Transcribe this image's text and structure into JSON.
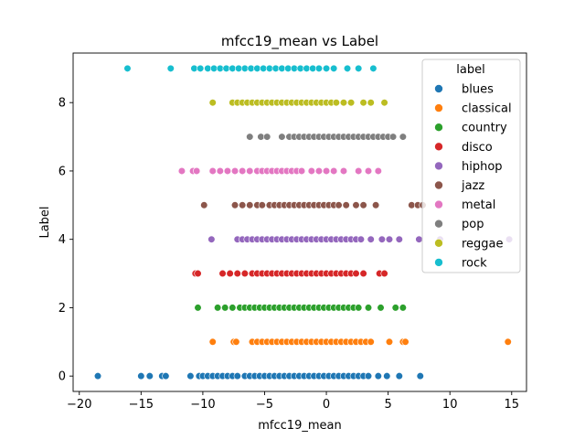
{
  "chart_data": {
    "type": "scatter",
    "title": "mfcc19_mean vs Label",
    "xlabel": "mfcc19_mean",
    "ylabel": "Label",
    "xlim": [
      -20.5,
      16.2
    ],
    "ylim": [
      -0.45,
      9.45
    ],
    "xticks": [
      -20,
      -15,
      -10,
      -5,
      0,
      5,
      10,
      15
    ],
    "yticks": [
      0,
      2,
      4,
      6,
      8
    ],
    "grid": false,
    "legend": {
      "title": "label",
      "placement": "top-right"
    },
    "series": [
      {
        "name": "blues",
        "color": "#1f77b4",
        "label": 0,
        "x": [
          -18.5,
          -15.0,
          -14.3,
          -13.3,
          -13.0,
          -11.0,
          -10.3,
          -10.0,
          -9.6,
          -9.2,
          -8.8,
          -8.4,
          -8.0,
          -7.6,
          -7.2,
          -6.6,
          -6.2,
          -5.8,
          -5.4,
          -5.0,
          -4.6,
          -4.2,
          -3.8,
          -3.4,
          -3.0,
          -2.6,
          -2.2,
          -1.8,
          -1.4,
          -1.0,
          -0.6,
          -0.2,
          0.2,
          0.6,
          1.0,
          1.4,
          1.8,
          2.2,
          2.6,
          3.0,
          3.4,
          4.2,
          4.9,
          5.9,
          7.6
        ]
      },
      {
        "name": "classical",
        "color": "#ff7f0e",
        "label": 1,
        "x": [
          -9.2,
          -7.5,
          -7.3,
          -6.0,
          -5.6,
          -5.2,
          -4.8,
          -4.4,
          -4.0,
          -3.6,
          -3.2,
          -2.8,
          -2.4,
          -2.0,
          -1.6,
          -1.2,
          -0.8,
          -0.4,
          0.0,
          0.4,
          0.8,
          1.2,
          1.6,
          2.0,
          2.4,
          2.8,
          3.2,
          3.6,
          5.1,
          6.2,
          6.4,
          14.7
        ]
      },
      {
        "name": "country",
        "color": "#2ca02c",
        "label": 2,
        "x": [
          -10.4,
          -8.8,
          -8.2,
          -7.6,
          -7.0,
          -6.6,
          -6.2,
          -5.8,
          -5.4,
          -5.0,
          -4.6,
          -4.2,
          -3.8,
          -3.4,
          -3.0,
          -2.6,
          -2.2,
          -1.8,
          -1.4,
          -1.0,
          -0.6,
          -0.2,
          0.2,
          0.6,
          1.0,
          1.4,
          1.8,
          2.2,
          2.6,
          3.4,
          4.4,
          5.6,
          6.2
        ]
      },
      {
        "name": "disco",
        "color": "#d62728",
        "label": 3,
        "x": [
          -10.6,
          -10.4,
          -8.4,
          -7.8,
          -7.2,
          -6.6,
          -6.0,
          -5.6,
          -5.2,
          -4.8,
          -4.4,
          -4.0,
          -3.6,
          -3.2,
          -2.8,
          -2.4,
          -2.0,
          -1.6,
          -1.2,
          -0.8,
          -0.4,
          0.0,
          0.4,
          0.8,
          1.2,
          1.6,
          2.0,
          2.4,
          3.0,
          4.3,
          4.7
        ]
      },
      {
        "name": "hiphop",
        "color": "#9467bd",
        "label": 4,
        "x": [
          -9.3,
          -7.2,
          -6.8,
          -6.4,
          -6.0,
          -5.6,
          -5.2,
          -4.8,
          -4.4,
          -4.0,
          -3.6,
          -3.2,
          -2.8,
          -2.4,
          -2.0,
          -1.6,
          -1.2,
          -0.8,
          -0.4,
          0.0,
          0.4,
          0.8,
          1.2,
          1.6,
          2.0,
          2.4,
          2.8,
          3.6,
          4.5,
          5.1,
          5.9,
          7.5,
          9.2,
          14.8
        ]
      },
      {
        "name": "jazz",
        "color": "#8c564b",
        "label": 5,
        "x": [
          -9.9,
          -7.4,
          -6.8,
          -6.2,
          -5.6,
          -5.2,
          -4.6,
          -4.2,
          -3.8,
          -3.4,
          -3.0,
          -2.6,
          -2.2,
          -1.8,
          -1.4,
          -1.0,
          -0.6,
          -0.2,
          0.2,
          0.6,
          1.0,
          1.6,
          2.4,
          3.0,
          4.0,
          6.9,
          7.4,
          7.8
        ]
      },
      {
        "name": "metal",
        "color": "#e377c2",
        "label": 6,
        "x": [
          -11.7,
          -10.8,
          -10.5,
          -9.2,
          -8.6,
          -8.0,
          -7.4,
          -6.8,
          -6.2,
          -5.6,
          -5.2,
          -4.8,
          -4.4,
          -4.0,
          -3.6,
          -3.2,
          -2.8,
          -2.4,
          -2.0,
          -1.2,
          -0.6,
          0.0,
          0.6,
          1.4,
          2.6,
          3.4,
          4.2
        ]
      },
      {
        "name": "pop",
        "color": "#7f7f7f",
        "label": 7,
        "x": [
          -6.2,
          -5.3,
          -4.8,
          -3.6,
          -3.0,
          -2.6,
          -2.2,
          -1.8,
          -1.4,
          -1.0,
          -0.6,
          -0.2,
          0.2,
          0.6,
          1.0,
          1.4,
          1.8,
          2.2,
          2.6,
          3.0,
          3.4,
          3.8,
          4.2,
          4.6,
          5.0,
          5.4,
          6.2
        ]
      },
      {
        "name": "reggae",
        "color": "#bcbd22",
        "label": 8,
        "x": [
          -9.2,
          -7.6,
          -7.2,
          -6.8,
          -6.4,
          -6.0,
          -5.6,
          -5.2,
          -4.8,
          -4.4,
          -4.0,
          -3.6,
          -3.2,
          -2.8,
          -2.4,
          -2.0,
          -1.6,
          -1.2,
          -0.8,
          -0.4,
          0.0,
          0.4,
          0.8,
          1.4,
          2.0,
          3.0,
          3.6,
          4.7
        ]
      },
      {
        "name": "rock",
        "color": "#17becf",
        "label": 9,
        "x": [
          -16.1,
          -12.6,
          -10.7,
          -10.2,
          -9.6,
          -9.1,
          -8.6,
          -8.1,
          -7.6,
          -7.1,
          -6.6,
          -6.1,
          -5.6,
          -5.1,
          -4.6,
          -4.1,
          -3.6,
          -3.1,
          -2.6,
          -2.1,
          -1.6,
          -1.1,
          -0.6,
          0.0,
          0.6,
          1.7,
          2.6,
          3.8
        ]
      }
    ]
  }
}
